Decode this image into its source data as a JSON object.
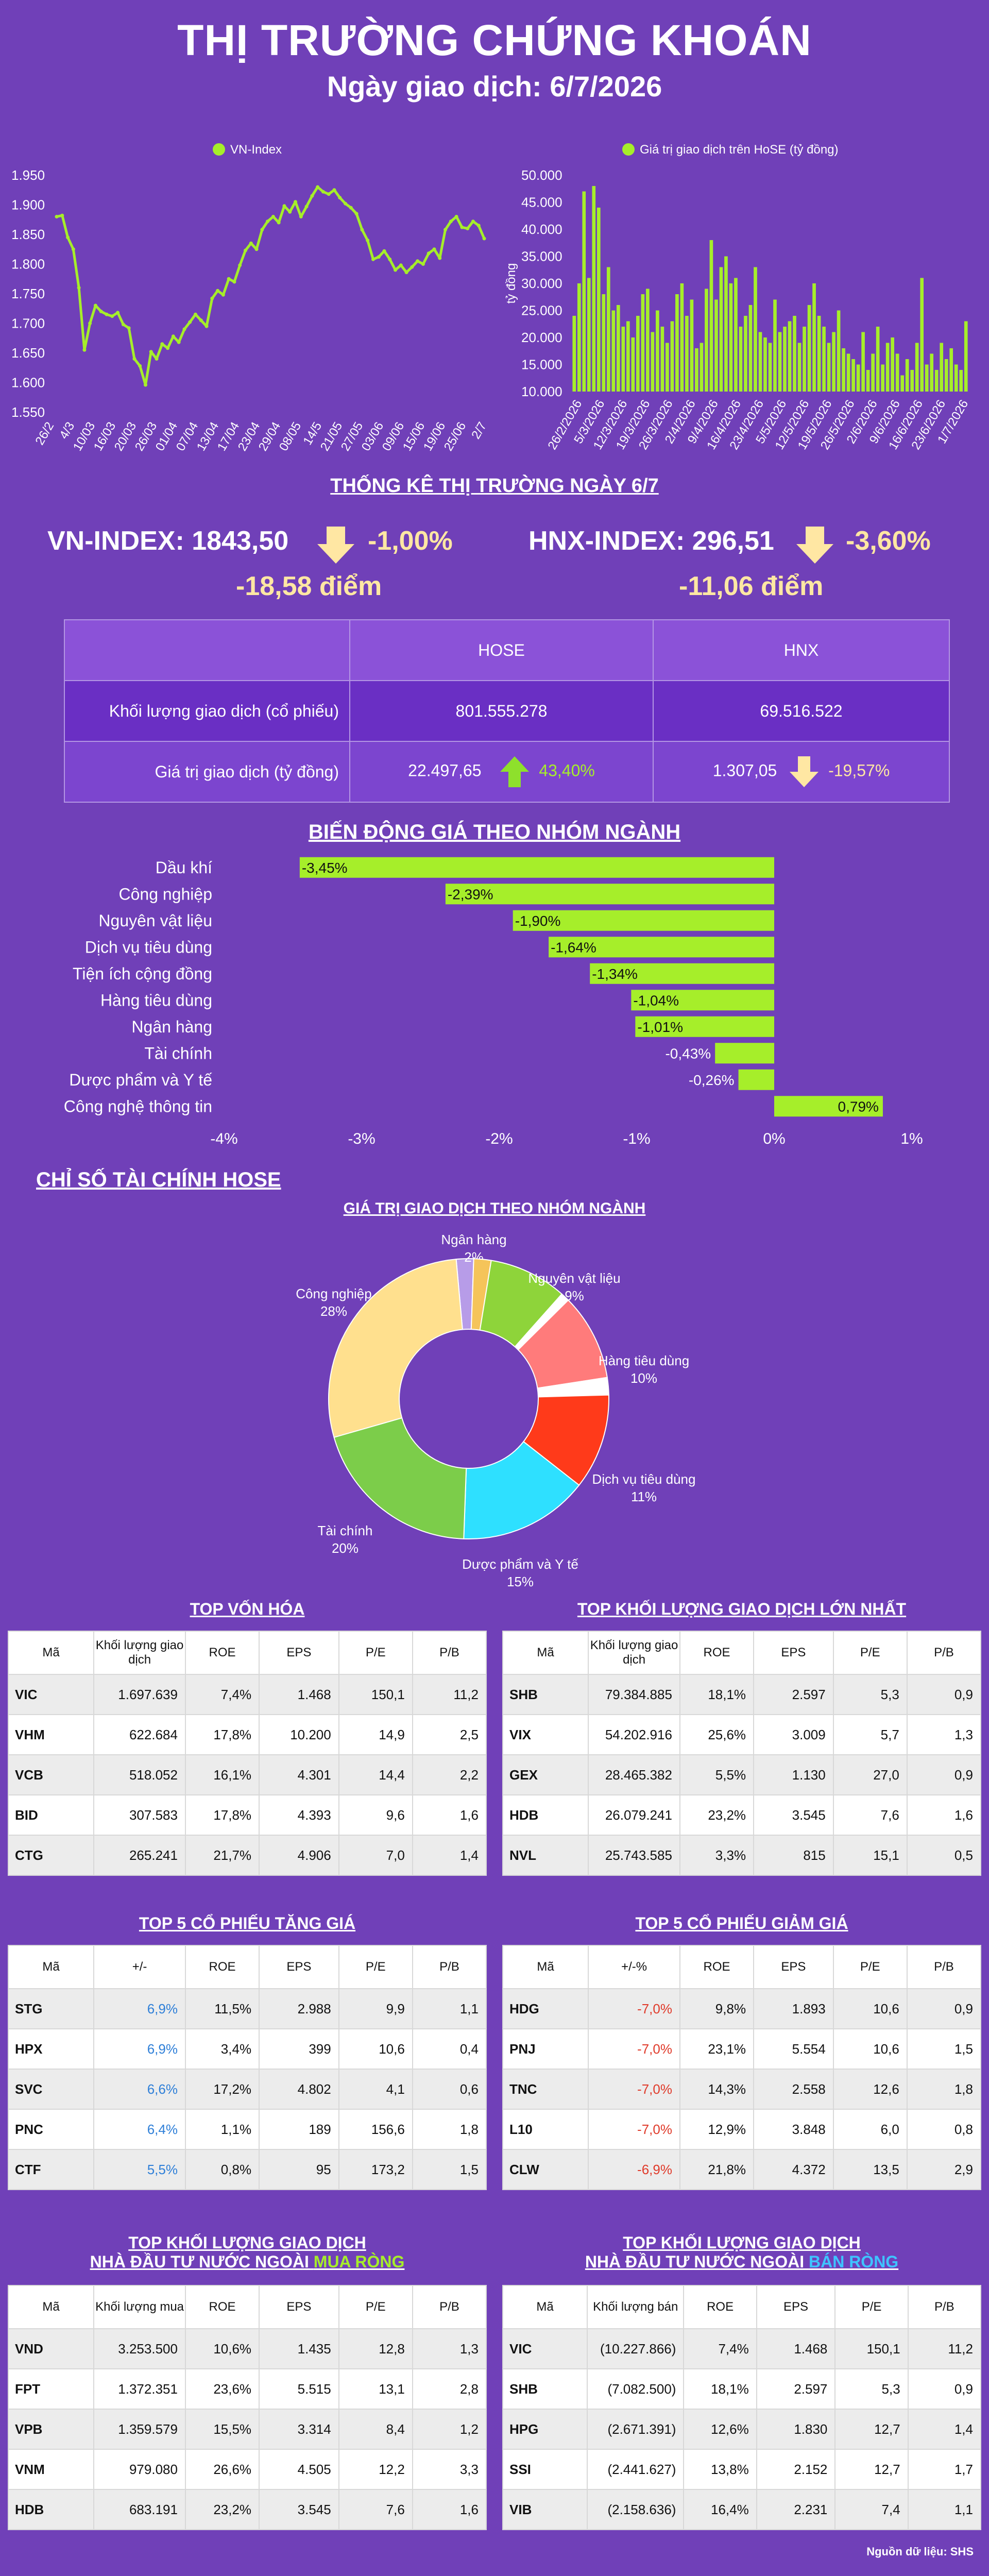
{
  "header": {
    "title": "THỊ TRƯỜNG CHỨNG KHOÁN",
    "subtitle": "Ngày giao dịch: 6/7/2026"
  },
  "colors": {
    "background": "#7040b8",
    "green": "#a6ee2a",
    "up_blue": "#2e7fd8",
    "down_red": "#e03a2a",
    "arrow_down": "#ffe7a3"
  },
  "chart_data": [
    {
      "type": "line",
      "legend": "VN-Index",
      "legend_position": "top-center",
      "grid": false,
      "ylim": [
        1550,
        1950
      ],
      "yticks": [
        "1.950",
        "1.900",
        "1.850",
        "1.800",
        "1.750",
        "1.700",
        "1.650",
        "1.600",
        "1.550"
      ],
      "xtick_labels": [
        "26/2",
        "4/3",
        "10/03",
        "16/03",
        "20/03",
        "26/03",
        "01/04",
        "07/04",
        "13/04",
        "17/04",
        "23/04",
        "29/04",
        "08/05",
        "14/5",
        "21/05",
        "27/05",
        "03/06",
        "09/06",
        "15/06",
        "19/06",
        "25/06",
        "2/7"
      ],
      "values": [
        1880,
        1882,
        1845,
        1825,
        1760,
        1655,
        1700,
        1730,
        1720,
        1715,
        1712,
        1718,
        1698,
        1692,
        1640,
        1628,
        1596,
        1652,
        1640,
        1665,
        1658,
        1678,
        1668,
        1690,
        1702,
        1715,
        1705,
        1695,
        1742,
        1755,
        1748,
        1775,
        1770,
        1798,
        1823,
        1835,
        1825,
        1858,
        1872,
        1880,
        1870,
        1898,
        1888,
        1905,
        1880,
        1897,
        1915,
        1930,
        1922,
        1918,
        1925,
        1912,
        1902,
        1895,
        1885,
        1858,
        1840,
        1808,
        1812,
        1822,
        1808,
        1790,
        1798,
        1786,
        1795,
        1805,
        1800,
        1818,
        1825,
        1810,
        1858,
        1872,
        1880,
        1862,
        1860,
        1872,
        1865,
        1843
      ]
    },
    {
      "type": "bar",
      "legend": "Giá trị giao dịch trên HoSE (tỷ đồng)",
      "legend_position": "top-center",
      "ylabel": "tỷ đồng",
      "ylim": [
        10000,
        50000
      ],
      "yticks": [
        "50.000",
        "45.000",
        "40.000",
        "35.000",
        "30.000",
        "25.000",
        "20.000",
        "15.000",
        "10.000"
      ],
      "xtick_labels": [
        "26/2/2026",
        "5/3/2026",
        "12/3/2026",
        "19/3/2026",
        "26/3/2026",
        "2/4/2026",
        "9/4/2026",
        "16/4/2026",
        "23/4/2026",
        "5/5/2026",
        "12/5/2026",
        "19/5/2026",
        "26/5/2026",
        "2/6/2026",
        "9/6/2026",
        "16/6/2026",
        "23/6/2026",
        "1/7/2026"
      ],
      "values": [
        24000,
        30000,
        47000,
        31000,
        48000,
        44000,
        28000,
        33000,
        25000,
        26000,
        22000,
        23000,
        20000,
        24000,
        28000,
        29000,
        21000,
        25000,
        22000,
        19000,
        23000,
        28000,
        30000,
        24000,
        27000,
        18000,
        19000,
        29000,
        38000,
        27000,
        33000,
        35000,
        30000,
        31000,
        22000,
        24000,
        26000,
        33000,
        21000,
        20000,
        19000,
        27000,
        21000,
        22000,
        23000,
        24000,
        19000,
        22000,
        26000,
        30000,
        24000,
        22000,
        19000,
        21000,
        25000,
        18000,
        17000,
        16000,
        15000,
        21000,
        14000,
        17000,
        22000,
        15000,
        19000,
        20000,
        17000,
        13000,
        16000,
        14000,
        19000,
        31000,
        15000,
        17000,
        14000,
        19000,
        16000,
        18000,
        15000,
        14000,
        23000
      ]
    },
    {
      "type": "bar",
      "orientation": "horizontal",
      "title": "BIẾN ĐỘNG GIÁ THEO NHÓM NGÀNH",
      "categories": [
        "Dầu khí",
        "Công nghiệp",
        "Nguyên vật liệu",
        "Dịch vụ tiêu dùng",
        "Tiện ích cộng đồng",
        "Hàng tiêu dùng",
        "Ngân hàng",
        "Tài chính",
        "Dược phẩm và Y tế",
        "Công nghệ thông tin"
      ],
      "values": [
        -3.45,
        -2.39,
        -1.9,
        -1.64,
        -1.34,
        -1.04,
        -1.01,
        -0.43,
        -0.26,
        0.79
      ],
      "value_labels": [
        "-3,45%",
        "-2,39%",
        "-1,90%",
        "-1,64%",
        "-1,34%",
        "-1,04%",
        "-1,01%",
        "-0,43%",
        "-0,26%",
        "0,79%"
      ],
      "xlim": [
        -4,
        1
      ],
      "xticks": [
        "-4%",
        "-3%",
        "-2%",
        "-1%",
        "0%",
        "1%"
      ]
    },
    {
      "type": "pie",
      "style": "donut",
      "title": "GIÁ TRỊ GIAO DỊCH THEO NHÓM NGÀNH",
      "slices": [
        {
          "name": "Ngân hàng",
          "value": 2,
          "label": "2%",
          "color": "#b79ce8"
        },
        {
          "name": "",
          "value": 2,
          "label": "",
          "color": "#f5c45a"
        },
        {
          "name": "Nguyên vật liệu",
          "value": 9,
          "label": "9%",
          "color": "#8ed43a"
        },
        {
          "name": "",
          "value": 1,
          "label": "",
          "color": "#ffffff"
        },
        {
          "name": "Hàng tiêu dùng",
          "value": 10,
          "label": "10%",
          "color": "#ff7b7b"
        },
        {
          "name": "",
          "value": 2,
          "label": "",
          "color": "#ffffff"
        },
        {
          "name": "",
          "value": 0,
          "label": "",
          "color": "#ff3a1a"
        },
        {
          "name": "Dịch vụ tiêu dùng",
          "value": 11,
          "label": "11%",
          "color": "#ff3a1a"
        },
        {
          "name": "",
          "value": 0,
          "label": "",
          "color": "#16a85a"
        },
        {
          "name": "Dược phẩm và Y tế",
          "value": 15,
          "label": "15%",
          "color": "#2ee0ff"
        },
        {
          "name": "Tài chính",
          "value": 20,
          "label": "20%",
          "color": "#7ccd4a"
        },
        {
          "name": "Công nghiệp",
          "value": 28,
          "label": "28%",
          "color": "#ffe08e"
        }
      ]
    }
  ],
  "stats": {
    "section_title": "THỐNG KÊ THỊ TRƯỜNG NGÀY 6/7",
    "vn_index": {
      "label": "VN-INDEX: 1843,50",
      "pct": "-1,00%",
      "points": "-18,58 điểm"
    },
    "hnx_index": {
      "label": "HNX-INDEX: 296,51",
      "pct": "-3,60%",
      "points": "-11,06 điểm"
    },
    "table": {
      "col_hose": "HOSE",
      "col_hnx": "HNX",
      "row1_label": "Khối lượng giao dịch (cổ phiếu)",
      "row1_hose": "801.555.278",
      "row1_hnx": "69.516.522",
      "row2_label": "Giá trị giao dịch (tỷ đồng)",
      "row2_hose": "22.497,65",
      "row2_hose_chg": "43,40%",
      "row2_hnx": "1.307,05",
      "row2_hnx_chg": "-19,57%"
    }
  },
  "fin": {
    "section_title": "CHỈ SỐ TÀI CHÍNH HOSE",
    "source": "Nguồn dữ liệu: SHS",
    "tables": [
      {
        "title": "TOP VỐN HÓA",
        "headers": [
          "Mã",
          "Khối lượng giao dịch",
          "ROE",
          "EPS",
          "P/E",
          "P/B"
        ],
        "rows": [
          [
            "VIC",
            "1.697.639",
            "7,4%",
            "1.468",
            "150,1",
            "11,2"
          ],
          [
            "VHM",
            "622.684",
            "17,8%",
            "10.200",
            "14,9",
            "2,5"
          ],
          [
            "VCB",
            "518.052",
            "16,1%",
            "4.301",
            "14,4",
            "2,2"
          ],
          [
            "BID",
            "307.583",
            "17,8%",
            "4.393",
            "9,6",
            "1,6"
          ],
          [
            "CTG",
            "265.241",
            "21,7%",
            "4.906",
            "7,0",
            "1,4"
          ]
        ]
      },
      {
        "title": "TOP KHỐI LƯỢNG GIAO DỊCH LỚN NHẤT",
        "headers": [
          "Mã",
          "Khối lượng giao dịch",
          "ROE",
          "EPS",
          "P/E",
          "P/B"
        ],
        "rows": [
          [
            "SHB",
            "79.384.885",
            "18,1%",
            "2.597",
            "5,3",
            "0,9"
          ],
          [
            "VIX",
            "54.202.916",
            "25,6%",
            "3.009",
            "5,7",
            "1,3"
          ],
          [
            "GEX",
            "28.465.382",
            "5,5%",
            "1.130",
            "27,0",
            "0,9"
          ],
          [
            "HDB",
            "26.079.241",
            "23,2%",
            "3.545",
            "7,6",
            "1,6"
          ],
          [
            "NVL",
            "25.743.585",
            "3,3%",
            "815",
            "15,1",
            "0,5"
          ]
        ]
      },
      {
        "title": "TOP 5 CỔ PHIẾU TĂNG GIÁ",
        "headers": [
          "Mã",
          "+/-",
          "ROE",
          "EPS",
          "P/E",
          "P/B"
        ],
        "rows": [
          [
            "STG",
            "6,9%",
            "11,5%",
            "2.988",
            "9,9",
            "1,1"
          ],
          [
            "HPX",
            "6,9%",
            "3,4%",
            "399",
            "10,6",
            "0,4"
          ],
          [
            "SVC",
            "6,6%",
            "17,2%",
            "4.802",
            "4,1",
            "0,6"
          ],
          [
            "PNC",
            "6,4%",
            "1,1%",
            "189",
            "156,6",
            "1,8"
          ],
          [
            "CTF",
            "5,5%",
            "0,8%",
            "95",
            "173,2",
            "1,5"
          ]
        ]
      },
      {
        "title": "TOP 5 CỔ PHIẾU GIẢM GIÁ",
        "headers": [
          "Mã",
          "+/-%",
          "ROE",
          "EPS",
          "P/E",
          "P/B"
        ],
        "rows": [
          [
            "HDG",
            "-7,0%",
            "9,8%",
            "1.893",
            "10,6",
            "0,9"
          ],
          [
            "PNJ",
            "-7,0%",
            "23,1%",
            "5.554",
            "10,6",
            "1,5"
          ],
          [
            "TNC",
            "-7,0%",
            "14,3%",
            "2.558",
            "12,6",
            "1,8"
          ],
          [
            "L10",
            "-7,0%",
            "12,9%",
            "3.848",
            "6,0",
            "0,8"
          ],
          [
            "CLW",
            "-6,9%",
            "21,8%",
            "4.372",
            "13,5",
            "2,9"
          ]
        ]
      },
      {
        "title_line1": "TOP KHỐI LƯỢNG GIAO DỊCH",
        "title_line2a": "NHÀ ĐẦU TƯ NƯỚC NGOÀI ",
        "title_line2b": "MUA RÒNG",
        "headers": [
          "Mã",
          "Khối lượng mua",
          "ROE",
          "EPS",
          "P/E",
          "P/B"
        ],
        "rows": [
          [
            "VND",
            "3.253.500",
            "10,6%",
            "1.435",
            "12,8",
            "1,3"
          ],
          [
            "FPT",
            "1.372.351",
            "23,6%",
            "5.515",
            "13,1",
            "2,8"
          ],
          [
            "VPB",
            "1.359.579",
            "15,5%",
            "3.314",
            "8,4",
            "1,2"
          ],
          [
            "VNM",
            "979.080",
            "26,6%",
            "4.505",
            "12,2",
            "3,3"
          ],
          [
            "HDB",
            "683.191",
            "23,2%",
            "3.545",
            "7,6",
            "1,6"
          ]
        ]
      },
      {
        "title_line1": "TOP KHỐI LƯỢNG GIAO DỊCH",
        "title_line2a": "NHÀ ĐẦU TƯ NƯỚC NGOÀI ",
        "title_line2b": "BÁN RÒNG",
        "headers": [
          "Mã",
          "Khối lượng bán",
          "ROE",
          "EPS",
          "P/E",
          "P/B"
        ],
        "rows": [
          [
            "VIC",
            "(10.227.866)",
            "7,4%",
            "1.468",
            "150,1",
            "11,2"
          ],
          [
            "SHB",
            "(7.082.500)",
            "18,1%",
            "2.597",
            "5,3",
            "0,9"
          ],
          [
            "HPG",
            "(2.671.391)",
            "12,6%",
            "1.830",
            "12,7",
            "1,4"
          ],
          [
            "SSI",
            "(2.441.627)",
            "13,8%",
            "2.152",
            "12,7",
            "1,7"
          ],
          [
            "VIB",
            "(2.158.636)",
            "16,4%",
            "2.231",
            "7,4",
            "1,1"
          ]
        ]
      }
    ]
  }
}
